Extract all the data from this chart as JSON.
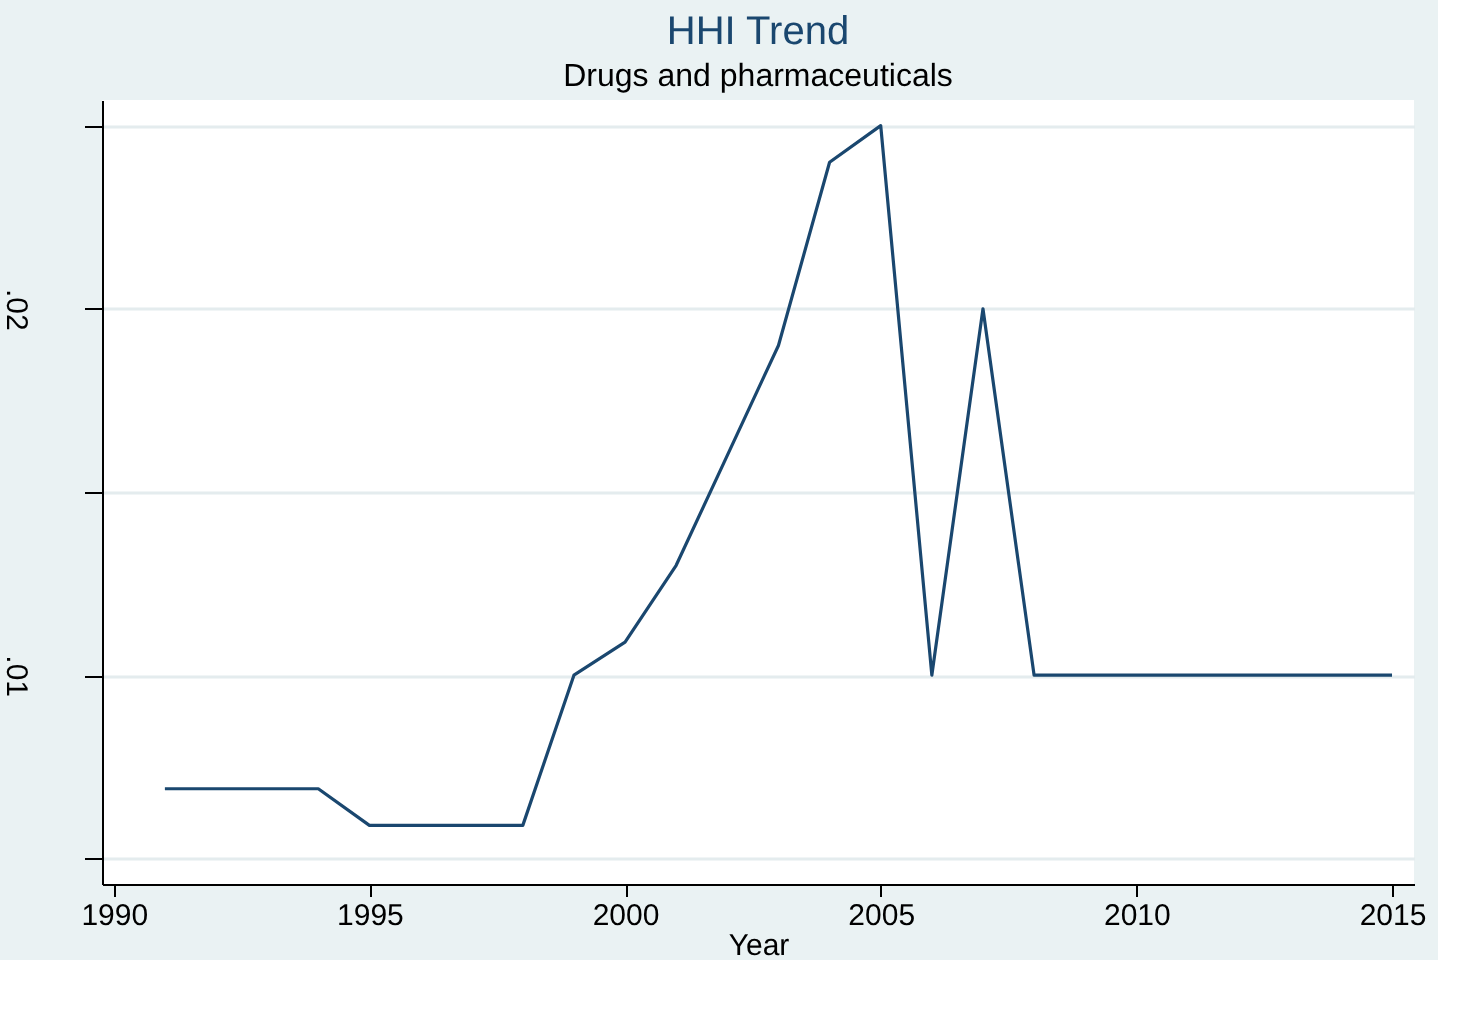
{
  "chart_data": {
    "type": "line",
    "title": "HHI Trend",
    "subtitle": "Drugs and pharmaceuticals",
    "xlabel": "Year",
    "x": [
      1991,
      1992,
      1993,
      1994,
      1995,
      1996,
      1997,
      1998,
      1999,
      2000,
      2001,
      2002,
      2003,
      2004,
      2005,
      2006,
      2007,
      2008,
      2009,
      2010,
      2011,
      2012,
      2013,
      2014,
      2015
    ],
    "series": [
      {
        "color": "#1a476f",
        "values": [
          0.0069,
          0.0069,
          0.0069,
          0.0069,
          0.0059,
          0.0059,
          0.0059,
          0.0059,
          0.01,
          0.0109,
          0.013,
          0.016,
          0.019,
          0.024,
          0.025,
          0.01,
          0.02,
          0.01,
          0.01,
          0.01,
          0.01,
          0.01,
          0.01,
          0.01,
          0.01
        ]
      }
    ],
    "xlim": [
      1989.77,
      2015.43
    ],
    "ylim": [
      0.0043,
      0.0257
    ],
    "xticks": [
      1990,
      1995,
      2000,
      2005,
      2010,
      2015
    ],
    "yticks": [
      {
        "value": 0.005,
        "label": null
      },
      {
        "value": 0.01,
        "label": ".01"
      },
      {
        "value": 0.015,
        "label": null
      },
      {
        "value": 0.02,
        "label": ".02"
      },
      {
        "value": 0.025,
        "label": null
      }
    ],
    "grid": "y",
    "marker": "none",
    "line_style": "solid"
  }
}
